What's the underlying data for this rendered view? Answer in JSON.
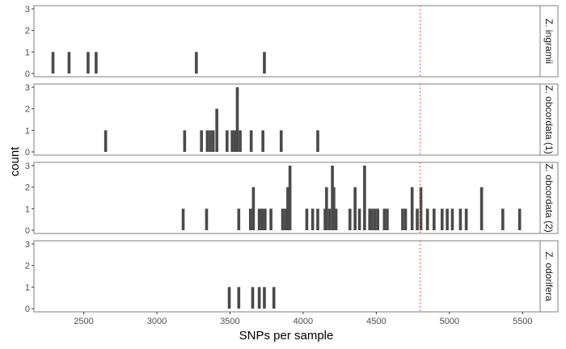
{
  "chart_data": {
    "type": "bar",
    "xlabel": "SNPs per sample",
    "ylabel": "count",
    "x_ticks": [
      2500,
      3000,
      3500,
      4000,
      4500,
      5000,
      5500
    ],
    "y_ticks": [
      0,
      1,
      2,
      3
    ],
    "xlim": [
      2160,
      5620
    ],
    "ylim": [
      0,
      3
    ],
    "bin_width": 20,
    "reference_line": {
      "x": 4800,
      "color": "#e05050",
      "style": "dotted"
    },
    "bar_color": "#4a4a4a",
    "panels": [
      {
        "label": "Z. ingramii",
        "bars": [
          {
            "x": 2290,
            "count": 1
          },
          {
            "x": 2400,
            "count": 1
          },
          {
            "x": 2530,
            "count": 1
          },
          {
            "x": 2585,
            "count": 1
          },
          {
            "x": 3270,
            "count": 1
          },
          {
            "x": 3735,
            "count": 1
          }
        ]
      },
      {
        "label": "Z. obcordata (1)",
        "bars": [
          {
            "x": 2650,
            "count": 1
          },
          {
            "x": 3190,
            "count": 1
          },
          {
            "x": 3305,
            "count": 1
          },
          {
            "x": 3345,
            "count": 1
          },
          {
            "x": 3365,
            "count": 1
          },
          {
            "x": 3385,
            "count": 1
          },
          {
            "x": 3410,
            "count": 2
          },
          {
            "x": 3480,
            "count": 1
          },
          {
            "x": 3515,
            "count": 1
          },
          {
            "x": 3535,
            "count": 1
          },
          {
            "x": 3550,
            "count": 3
          },
          {
            "x": 3570,
            "count": 1
          },
          {
            "x": 3645,
            "count": 1
          },
          {
            "x": 3725,
            "count": 1
          },
          {
            "x": 3850,
            "count": 1
          },
          {
            "x": 4100,
            "count": 1
          }
        ]
      },
      {
        "label": "Z. obcordata (2)",
        "bars": [
          {
            "x": 3180,
            "count": 1
          },
          {
            "x": 3340,
            "count": 1
          },
          {
            "x": 3560,
            "count": 1
          },
          {
            "x": 3640,
            "count": 1
          },
          {
            "x": 3660,
            "count": 2
          },
          {
            "x": 3700,
            "count": 1
          },
          {
            "x": 3720,
            "count": 1
          },
          {
            "x": 3740,
            "count": 1
          },
          {
            "x": 3780,
            "count": 1
          },
          {
            "x": 3860,
            "count": 1
          },
          {
            "x": 3880,
            "count": 1
          },
          {
            "x": 3895,
            "count": 2
          },
          {
            "x": 3910,
            "count": 3
          },
          {
            "x": 4025,
            "count": 1
          },
          {
            "x": 4065,
            "count": 1
          },
          {
            "x": 4100,
            "count": 1
          },
          {
            "x": 4150,
            "count": 1
          },
          {
            "x": 4160,
            "count": 2
          },
          {
            "x": 4180,
            "count": 1
          },
          {
            "x": 4200,
            "count": 3
          },
          {
            "x": 4210,
            "count": 2
          },
          {
            "x": 4225,
            "count": 1
          },
          {
            "x": 4320,
            "count": 1
          },
          {
            "x": 4355,
            "count": 2
          },
          {
            "x": 4385,
            "count": 1
          },
          {
            "x": 4420,
            "count": 3
          },
          {
            "x": 4455,
            "count": 1
          },
          {
            "x": 4470,
            "count": 1
          },
          {
            "x": 4490,
            "count": 1
          },
          {
            "x": 4510,
            "count": 1
          },
          {
            "x": 4555,
            "count": 1
          },
          {
            "x": 4575,
            "count": 1
          },
          {
            "x": 4680,
            "count": 1
          },
          {
            "x": 4700,
            "count": 1
          },
          {
            "x": 4745,
            "count": 2
          },
          {
            "x": 4780,
            "count": 1
          },
          {
            "x": 4805,
            "count": 2
          },
          {
            "x": 4850,
            "count": 1
          },
          {
            "x": 4895,
            "count": 1
          },
          {
            "x": 4950,
            "count": 1
          },
          {
            "x": 4985,
            "count": 1
          },
          {
            "x": 5020,
            "count": 1
          },
          {
            "x": 5075,
            "count": 1
          },
          {
            "x": 5115,
            "count": 1
          },
          {
            "x": 5220,
            "count": 2
          },
          {
            "x": 5365,
            "count": 1
          },
          {
            "x": 5480,
            "count": 1
          }
        ]
      },
      {
        "label": "Z. odorifera",
        "bars": [
          {
            "x": 3495,
            "count": 1
          },
          {
            "x": 3560,
            "count": 1
          },
          {
            "x": 3655,
            "count": 1
          },
          {
            "x": 3700,
            "count": 1
          },
          {
            "x": 3735,
            "count": 1
          },
          {
            "x": 3800,
            "count": 1
          }
        ]
      }
    ]
  }
}
